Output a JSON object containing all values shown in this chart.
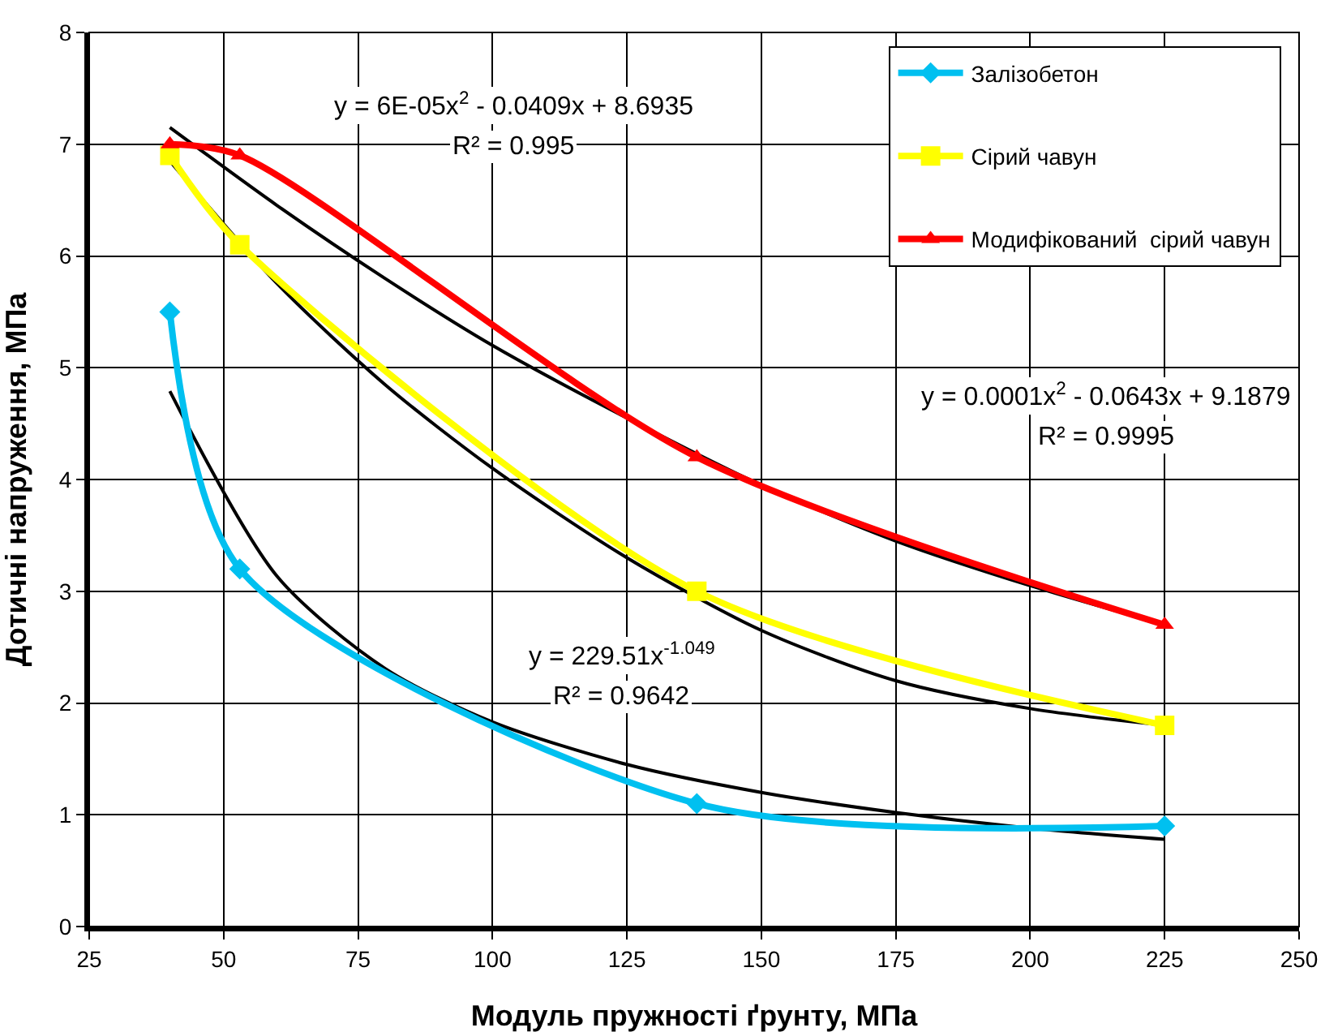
{
  "chart_data": {
    "type": "line",
    "xlabel": "Модуль пружності ґрунту, МПа",
    "ylabel": "Дотичні напруження, МПа",
    "xlim": [
      25,
      250
    ],
    "xticks": [
      25,
      50,
      75,
      100,
      125,
      150,
      175,
      200,
      225,
      250
    ],
    "ylim": [
      0,
      8
    ],
    "yticks": [
      0,
      1,
      2,
      3,
      4,
      5,
      6,
      7,
      8
    ],
    "grid": true,
    "legend": "top right",
    "line_style": "solid",
    "series": [
      {
        "name": "Залізобетон",
        "color": "#00c0f0",
        "marker": "diamond",
        "x": [
          40,
          53,
          138,
          225
        ],
        "values": [
          5.5,
          3.2,
          1.1,
          0.9
        ]
      },
      {
        "name": "Сірий чавун",
        "color": "#ffff00",
        "marker": "square",
        "x": [
          40,
          53,
          138,
          225
        ],
        "values": [
          6.9,
          6.1,
          3.0,
          1.8
        ]
      },
      {
        "name": "Модифікований  сірий чавун",
        "color": "#ff0000",
        "marker": "triangle",
        "x": [
          40,
          53,
          138,
          225
        ],
        "values": [
          7.0,
          6.9,
          4.2,
          2.7
        ]
      },
      {
        "type": "line",
        "color": "#000000",
        "marker": "none",
        "x": [
          40,
          60,
          80,
          100,
          125,
          150,
          175,
          200,
          225
        ],
        "values": [
          4.79,
          3.13,
          2.31,
          1.83,
          1.45,
          1.2,
          1.02,
          0.88,
          0.78
        ]
      },
      {
        "type": "line",
        "color": "#000000",
        "marker": "none",
        "x": [
          40,
          60,
          80,
          100,
          125,
          150,
          175,
          200,
          225
        ],
        "values": [
          6.85,
          5.75,
          4.85,
          4.1,
          3.3,
          2.65,
          2.2,
          1.95,
          1.8
        ]
      },
      {
        "type": "line",
        "color": "#000000",
        "marker": "none",
        "x": [
          40,
          60,
          80,
          100,
          125,
          150,
          175,
          200,
          225
        ],
        "values": [
          7.15,
          6.45,
          5.8,
          5.2,
          4.55,
          3.95,
          3.45,
          3.05,
          2.7
        ]
      }
    ],
    "annotations": [
      "y = 6E-05x$^{2}$ - 0.0409x + 8.6935",
      "R² = 0.995",
      "y = 0.0001x$^{2}$ - 0.0643x + 9.1879",
      "R² = 0.9995",
      "y = 229.51x$^{-1.049}$",
      "R² = 0.9642"
    ]
  }
}
